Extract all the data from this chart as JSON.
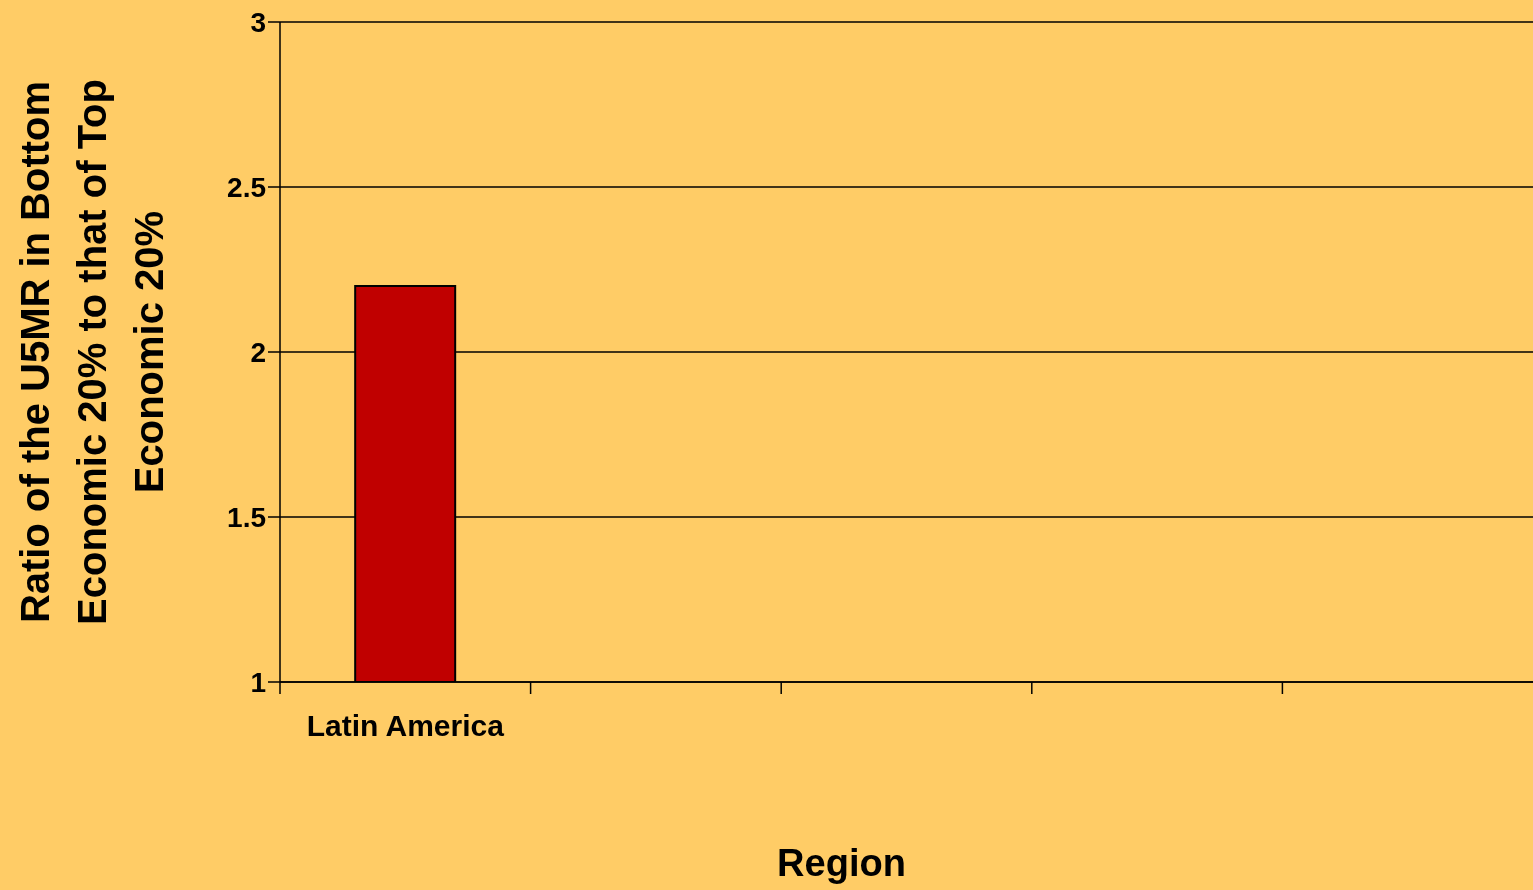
{
  "chart_data": {
    "type": "bar",
    "xlabel": "Region",
    "ylabel": "Ratio of the U5MR in Bottom Economic 20% to that of Top Economic 20%",
    "categories": [
      "Latin America",
      null,
      null,
      null,
      null
    ],
    "values": [
      2.2,
      null,
      null,
      null,
      null
    ],
    "color": "#c00000",
    "ylim": [
      1,
      3
    ],
    "yticks": [
      1,
      1.5,
      2,
      2.5,
      3
    ],
    "grid": "y"
  }
}
